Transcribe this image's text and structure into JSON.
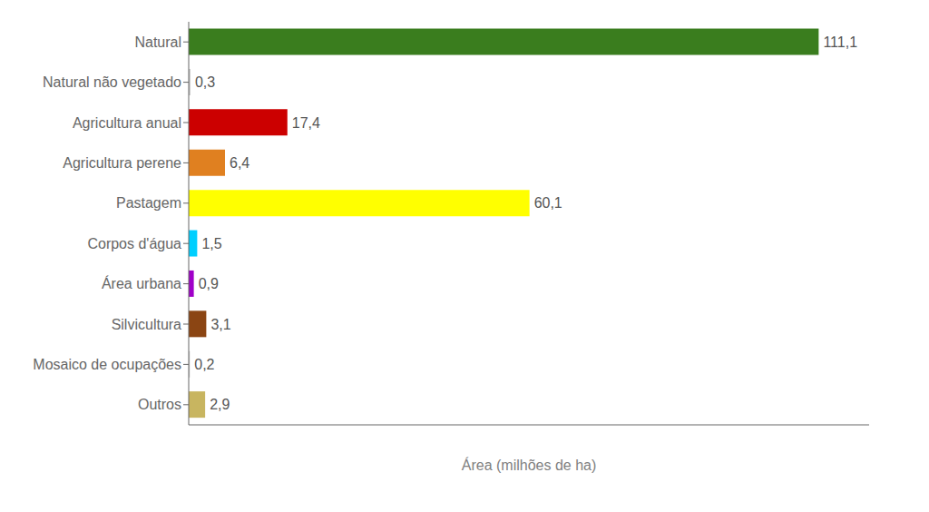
{
  "chart_data": {
    "type": "bar",
    "orientation": "horizontal",
    "categories": [
      "Natural",
      "Natural não vegetado",
      "Agricultura anual",
      "Agricultura perene",
      "Pastagem",
      "Corpos d'água",
      "Área urbana",
      "Silvicultura",
      "Mosaico de ocupações",
      "Outros"
    ],
    "values": [
      111.1,
      0.3,
      17.4,
      6.4,
      60.1,
      1.5,
      0.9,
      3.1,
      0.2,
      2.9
    ],
    "value_labels": [
      "111,1",
      "0,3",
      "17,4",
      "6,4",
      "60,1",
      "1,5",
      "0,9",
      "3,1",
      "0,2",
      "2,9"
    ],
    "colors": [
      "#3a7d1e",
      "#c8c8c8",
      "#cc0000",
      "#e08020",
      "#ffff00",
      "#00cfff",
      "#a000c8",
      "#8B4513",
      "#c8c8c8",
      "#c8b560"
    ],
    "xlabel": "Área (milhões de ha)",
    "xlim": [
      0,
      120
    ],
    "grid": false,
    "tick_labels": "y",
    "data_labels": true
  }
}
